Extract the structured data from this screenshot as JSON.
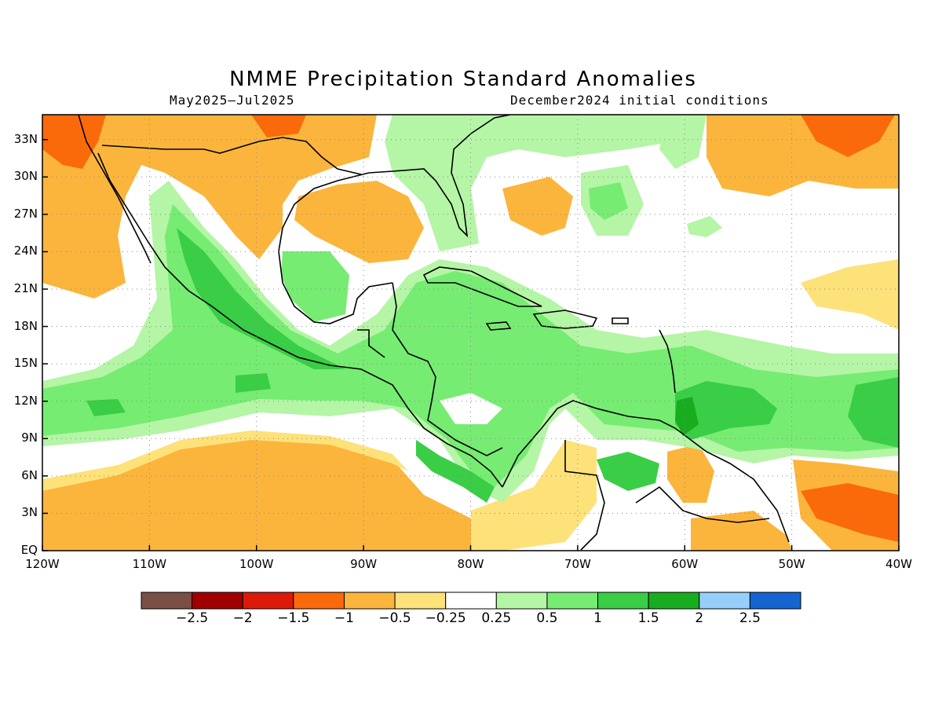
{
  "title": "NMME Precipitation Standard Anomalies",
  "period": "May2025–Jul2025",
  "init": "December2024 initial conditions",
  "lat_labels": [
    "33N",
    "30N",
    "27N",
    "24N",
    "21N",
    "18N",
    "15N",
    "12N",
    "9N",
    "6N",
    "3N",
    "EQ"
  ],
  "lat_values": [
    33,
    30,
    27,
    24,
    21,
    18,
    15,
    12,
    9,
    6,
    3,
    0
  ],
  "lon_labels": [
    "120W",
    "110W",
    "100W",
    "90W",
    "80W",
    "70W",
    "60W",
    "50W",
    "40W"
  ],
  "lon_values": [
    -120,
    -110,
    -100,
    -90,
    -80,
    -70,
    -60,
    -50,
    -40
  ],
  "extent": {
    "lon": [
      -120,
      -40
    ],
    "lat": [
      0,
      35
    ]
  },
  "colorbar": {
    "colors": [
      "#7a4f45",
      "#a00000",
      "#dc1a0a",
      "#fa6a0a",
      "#fbb53c",
      "#fde27a",
      "#ffffff",
      "#b4f5a6",
      "#76ec72",
      "#3acd46",
      "#18ad1e",
      "#96d0fa",
      "#1464d2"
    ],
    "labels": [
      "−2.5",
      "−2",
      "−1.5",
      "−1",
      "−0.5",
      "−0.25",
      "0.25",
      "0.5",
      "1",
      "1.5",
      "2",
      "2.5"
    ]
  }
}
